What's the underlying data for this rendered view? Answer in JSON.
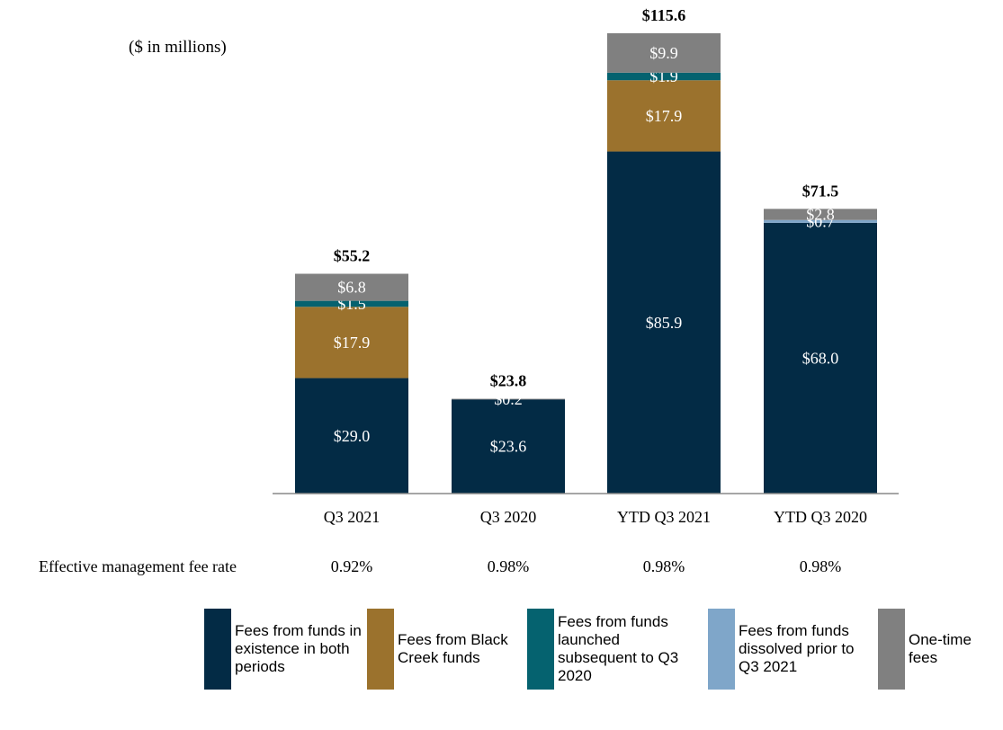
{
  "unit_note": "($ in millions)",
  "rate_label": "Effective management fee rate",
  "chart_data": {
    "type": "bar",
    "stacked": true,
    "categories": [
      "Q3 2021",
      "Q3 2020",
      "YTD Q3 2021",
      "YTD Q3 2020"
    ],
    "series": [
      {
        "name": "Fees from funds in existence in both periods",
        "color": "#032b45",
        "values": [
          29.0,
          23.6,
          85.9,
          68.0
        ],
        "labels": [
          "$29.0",
          "$23.6",
          "$85.9",
          "$68.0"
        ]
      },
      {
        "name": "Fees from Black Creek funds",
        "color": "#9b722d",
        "values": [
          17.9,
          0,
          17.9,
          0
        ],
        "labels": [
          "$17.9",
          "",
          "$17.9",
          ""
        ]
      },
      {
        "name": "Fees from funds launched subsequent to Q3 2020",
        "color": "#05626f",
        "values": [
          1.5,
          0,
          1.9,
          0
        ],
        "labels": [
          "$1.5",
          "",
          "$1.9",
          ""
        ]
      },
      {
        "name": "Fees from funds dissolved prior to Q3 2021",
        "color": "#7fa6c9",
        "values": [
          0,
          0,
          0,
          0.7
        ],
        "labels": [
          "",
          "",
          "",
          "$0.7"
        ]
      },
      {
        "name": "One-time fees",
        "color": "#808080",
        "values": [
          6.8,
          0.2,
          9.9,
          2.8
        ],
        "labels": [
          "$6.8",
          "$0.2",
          "$9.9",
          "$2.8"
        ]
      }
    ],
    "totals": [
      "$55.2",
      "$23.8",
      "$115.6",
      "$71.5"
    ],
    "total_values": [
      55.2,
      23.8,
      115.6,
      71.5
    ],
    "fee_rates": [
      "0.92%",
      "0.98%",
      "0.98%",
      "0.98%"
    ],
    "ylim": [
      0,
      115.6
    ],
    "grid": false,
    "legend": "bottom"
  },
  "legend_items": [
    {
      "label": "Fees from funds in existence in both periods",
      "color": "#032b45"
    },
    {
      "label": "Fees from Black Creek funds",
      "color": "#9b722d"
    },
    {
      "label": "Fees from funds launched subsequent to Q3 2020",
      "color": "#05626f"
    },
    {
      "label": "Fees from funds dissolved prior to Q3 2021",
      "color": "#7fa6c9"
    },
    {
      "label": "One-time fees",
      "color": "#808080"
    }
  ]
}
